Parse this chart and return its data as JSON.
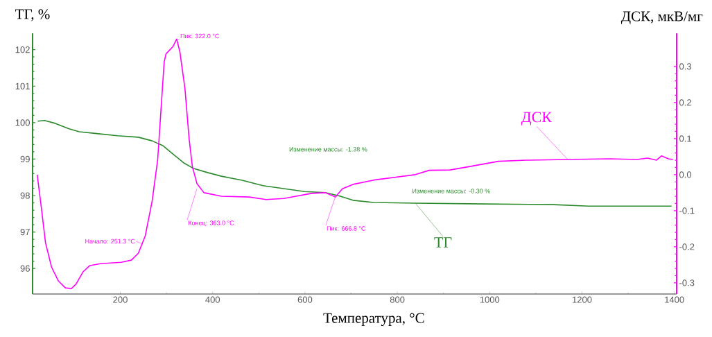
{
  "chart_data": {
    "type": "line",
    "xlabel": "Температура, °C",
    "ylabel": "ТГ, %",
    "y2label": "ДСК, мкВ/мг",
    "xlim": [
      10,
      1405
    ],
    "xticks": [
      200,
      400,
      600,
      800,
      1000,
      1200,
      1400
    ],
    "ylim": [
      95.3,
      102.45
    ],
    "yticks": [
      96,
      97,
      98,
      99,
      100,
      101,
      102
    ],
    "y2lim": [
      -0.331,
      0.392
    ],
    "y2ticks": [
      {
        "value": -0.3,
        "label": "-0.3"
      },
      {
        "value": -0.2,
        "label": "-0.2"
      },
      {
        "value": -0.1,
        "label": "-0.1"
      },
      {
        "value": 0,
        "label": "0.0"
      },
      {
        "value": 0.1,
        "label": "0.1"
      },
      {
        "value": 0.2,
        "label": "0.2"
      },
      {
        "value": 0.3,
        "label": "0.3"
      }
    ],
    "grid": false,
    "legend": "bottom right",
    "marker": "none",
    "line_style": "solid",
    "series": [
      {
        "name": "ТГ",
        "color": "#2b8a2b",
        "axis": "y",
        "x": [
          21,
          36,
          59,
          89,
          111,
          149,
          194,
          239,
          269,
          292,
          314,
          337,
          359,
          389,
          419,
          464,
          509,
          554,
          599,
          644,
          674,
          704,
          749,
          839,
          989,
          1139,
          1214,
          1394
        ],
        "values": [
          100.04,
          100.06,
          99.98,
          99.83,
          99.75,
          99.7,
          99.64,
          99.6,
          99.5,
          99.37,
          99.14,
          98.9,
          98.74,
          98.63,
          98.53,
          98.42,
          98.27,
          98.19,
          98.11,
          98.08,
          97.99,
          97.87,
          97.81,
          97.79,
          97.77,
          97.75,
          97.71,
          97.71
        ]
      },
      {
        "name": "ДСК",
        "color": "#ff00ff",
        "axis": "y2",
        "x": [
          20,
          29,
          38,
          51,
          66,
          81,
          94,
          104,
          119,
          134,
          157,
          202,
          224,
          239,
          254,
          269,
          281,
          289,
          295,
          299,
          314,
          322,
          329,
          340,
          349,
          356,
          366,
          381,
          419,
          479,
          516,
          554,
          614,
          644,
          666,
          681,
          704,
          749,
          839,
          869,
          914,
          959,
          1019,
          1079,
          1169,
          1259,
          1319,
          1342,
          1361,
          1372,
          1387,
          1397
        ],
        "values": [
          0.0,
          -0.092,
          -0.189,
          -0.256,
          -0.295,
          -0.314,
          -0.316,
          -0.304,
          -0.27,
          -0.252,
          -0.247,
          -0.243,
          -0.237,
          -0.218,
          -0.17,
          -0.073,
          0.042,
          0.197,
          0.312,
          0.335,
          0.355,
          0.376,
          0.341,
          0.239,
          0.1,
          0.023,
          -0.025,
          -0.05,
          -0.06,
          -0.062,
          -0.069,
          -0.066,
          -0.052,
          -0.05,
          -0.062,
          -0.039,
          -0.027,
          -0.015,
          0.0,
          0.012,
          0.013,
          0.023,
          0.037,
          0.04,
          0.042,
          0.044,
          0.042,
          0.046,
          0.04,
          0.052,
          0.044,
          0.042
        ]
      }
    ],
    "annotations": [
      {
        "text": "Пик: 322.0 °C",
        "x": 322,
        "y": 102.29
      },
      {
        "text": "Начало: 251.3 °C",
        "x": 249,
        "y": 96.67
      },
      {
        "text": "Конец: 363.0 °C",
        "x": 366,
        "y": 98.19
      },
      {
        "text": "Пик: 666.8 °C",
        "x": 666,
        "y": 97.98
      },
      "Изменение массы: -1.38 %",
      "Изменение массы: -0.30 %"
    ]
  }
}
